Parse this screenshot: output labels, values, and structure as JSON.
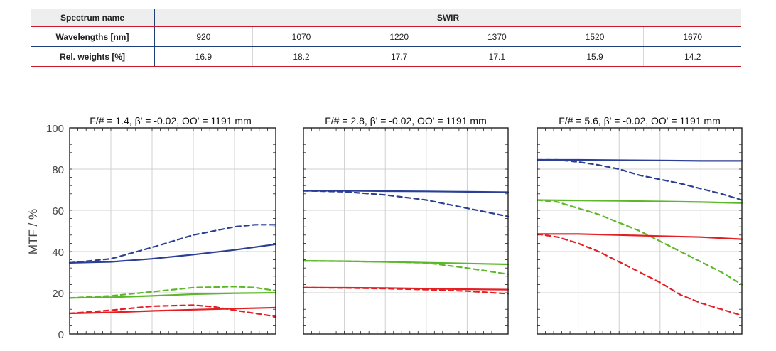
{
  "spectrum_table": {
    "header_label": "Spectrum name",
    "spectrum_value": "SWIR",
    "rows": [
      {
        "label": "Wavelengths [nm]",
        "values": [
          "920",
          "1070",
          "1220",
          "1370",
          "1520",
          "1670"
        ]
      },
      {
        "label": "Rel. weights [%]",
        "values": [
          "16.9",
          "18.2",
          "17.7",
          "17.1",
          "15.9",
          "14.2"
        ]
      }
    ]
  },
  "colors": {
    "blue": "#2b3f94",
    "green": "#5cb82a",
    "red": "#e41f23",
    "frame": "#222222",
    "grid": "#d0d0d0",
    "accent_line": "#c8182b"
  },
  "chart_data": [
    {
      "type": "line",
      "title": "F/# = 1.4, β' = -0.02, OO' = 1191 mm",
      "ylabel": "MTF / %",
      "ylim": [
        0,
        100
      ],
      "yticks": [
        0,
        20,
        40,
        60,
        80,
        100
      ],
      "xlim": [
        0,
        1
      ],
      "grid": true,
      "series": [
        {
          "color": "blue",
          "style": "solid",
          "x": [
            0,
            0.2,
            0.4,
            0.6,
            0.8,
            1
          ],
          "y": [
            34.5,
            35,
            36.5,
            38.5,
            40.8,
            43.5
          ]
        },
        {
          "color": "blue",
          "style": "dashed",
          "x": [
            0,
            0.2,
            0.4,
            0.6,
            0.8,
            0.9,
            1
          ],
          "y": [
            34.5,
            36.5,
            42,
            48,
            52,
            53,
            53
          ]
        },
        {
          "color": "green",
          "style": "solid",
          "x": [
            0,
            0.2,
            0.4,
            0.6,
            0.8,
            1
          ],
          "y": [
            17.5,
            17.8,
            18.5,
            19.3,
            19.8,
            20
          ]
        },
        {
          "color": "green",
          "style": "dashed",
          "x": [
            0,
            0.2,
            0.4,
            0.6,
            0.8,
            0.9,
            1
          ],
          "y": [
            17.5,
            18.5,
            20.5,
            22.5,
            23,
            22.5,
            21
          ]
        },
        {
          "color": "red",
          "style": "solid",
          "x": [
            0,
            0.2,
            0.4,
            0.6,
            0.8,
            1
          ],
          "y": [
            10,
            10.5,
            11.2,
            11.8,
            12.3,
            12.8
          ]
        },
        {
          "color": "red",
          "style": "dashed",
          "x": [
            0,
            0.2,
            0.4,
            0.6,
            0.7,
            0.8,
            0.9,
            1
          ],
          "y": [
            10,
            11.5,
            13.5,
            14,
            13.2,
            11.5,
            10,
            8.5
          ]
        }
      ]
    },
    {
      "type": "line",
      "title": "F/# = 2.8, β' = -0.02, OO' = 1191 mm",
      "ylim": [
        0,
        100
      ],
      "xlim": [
        0,
        1
      ],
      "grid": true,
      "series": [
        {
          "color": "blue",
          "style": "solid",
          "x": [
            0,
            0.2,
            0.4,
            0.6,
            0.8,
            1
          ],
          "y": [
            69.5,
            69.5,
            69.3,
            69.2,
            69,
            68.8
          ]
        },
        {
          "color": "blue",
          "style": "dashed",
          "x": [
            0,
            0.2,
            0.4,
            0.6,
            0.8,
            1
          ],
          "y": [
            69.5,
            69,
            67.5,
            65,
            61,
            57
          ]
        },
        {
          "color": "green",
          "style": "solid",
          "x": [
            0,
            0.2,
            0.4,
            0.6,
            0.8,
            1
          ],
          "y": [
            35.5,
            35.3,
            35,
            34.6,
            34.2,
            33.8
          ]
        },
        {
          "color": "green",
          "style": "dashed",
          "x": [
            0,
            0.2,
            0.4,
            0.6,
            0.8,
            1
          ],
          "y": [
            35.5,
            35.3,
            35,
            34.5,
            32,
            29
          ]
        },
        {
          "color": "red",
          "style": "solid",
          "x": [
            0,
            0.2,
            0.4,
            0.6,
            0.8,
            1
          ],
          "y": [
            22.5,
            22.4,
            22.3,
            22,
            21.7,
            21.5
          ]
        },
        {
          "color": "red",
          "style": "dashed",
          "x": [
            0,
            0.2,
            0.4,
            0.6,
            0.8,
            1
          ],
          "y": [
            22.5,
            22.3,
            22,
            21.5,
            20.8,
            19.5
          ]
        }
      ]
    },
    {
      "type": "line",
      "title": "F/# = 5.6, β' = -0.02, OO' = 1191 mm",
      "ylim": [
        0,
        100
      ],
      "xlim": [
        0,
        1
      ],
      "grid": true,
      "series": [
        {
          "color": "blue",
          "style": "solid",
          "x": [
            0,
            0.2,
            0.4,
            0.6,
            0.8,
            1
          ],
          "y": [
            84.5,
            84.5,
            84.3,
            84.2,
            84,
            84
          ]
        },
        {
          "color": "blue",
          "style": "dashed",
          "x": [
            0,
            0.1,
            0.2,
            0.3,
            0.4,
            0.5,
            0.6,
            0.7,
            0.8,
            0.9,
            1
          ],
          "y": [
            84.5,
            84.5,
            83.5,
            82,
            80,
            77,
            75,
            73,
            70.5,
            68,
            65
          ]
        },
        {
          "color": "green",
          "style": "solid",
          "x": [
            0,
            0.2,
            0.4,
            0.6,
            0.8,
            1
          ],
          "y": [
            65,
            64.8,
            64.6,
            64.3,
            64,
            63.5
          ]
        },
        {
          "color": "green",
          "style": "dashed",
          "x": [
            0,
            0.1,
            0.2,
            0.3,
            0.4,
            0.5,
            0.6,
            0.7,
            0.8,
            0.9,
            1
          ],
          "y": [
            65,
            64,
            61,
            58,
            54,
            50,
            45,
            40,
            35,
            30,
            24
          ]
        },
        {
          "color": "red",
          "style": "solid",
          "x": [
            0,
            0.2,
            0.4,
            0.6,
            0.8,
            1
          ],
          "y": [
            48.5,
            48.5,
            48,
            47.5,
            47,
            46
          ]
        },
        {
          "color": "red",
          "style": "dashed",
          "x": [
            0,
            0.1,
            0.2,
            0.3,
            0.4,
            0.5,
            0.6,
            0.7,
            0.8,
            0.9,
            1
          ],
          "y": [
            48.5,
            47,
            44,
            40,
            35,
            30,
            25,
            19,
            15,
            12,
            9
          ]
        }
      ]
    }
  ]
}
